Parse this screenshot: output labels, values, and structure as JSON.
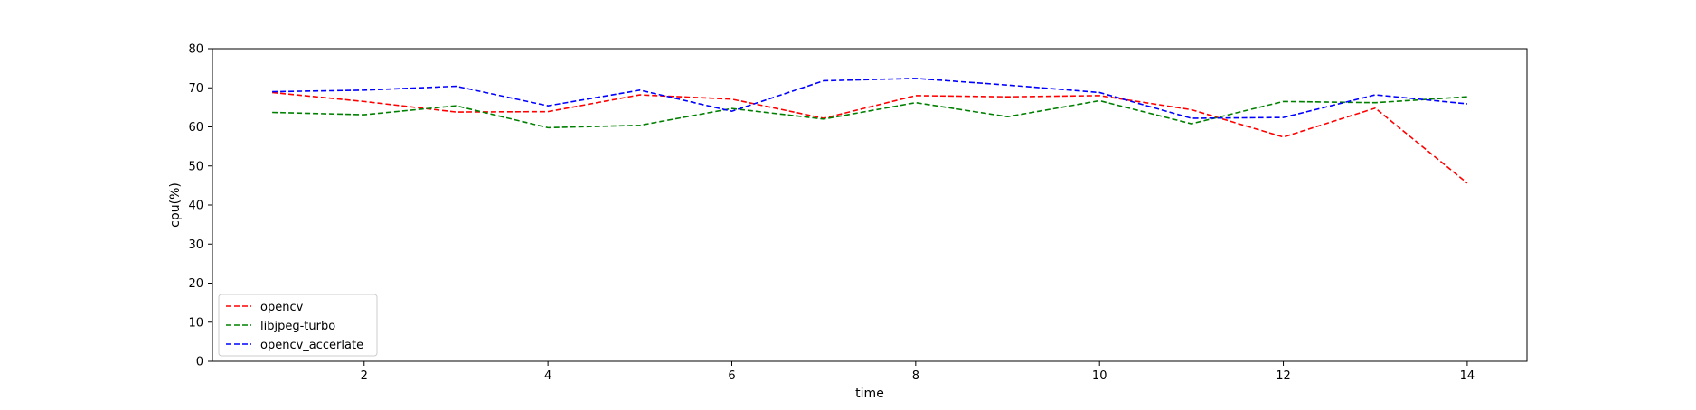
{
  "chart_data": {
    "type": "line",
    "title": "",
    "xlabel": "time",
    "ylabel": "cpu(%)",
    "xlim": [
      0.35,
      14.65
    ],
    "ylim": [
      0,
      80
    ],
    "xticks": [
      2,
      4,
      6,
      8,
      10,
      12,
      14
    ],
    "yticks": [
      0,
      10,
      20,
      30,
      40,
      50,
      60,
      70,
      80
    ],
    "grid": false,
    "legend_position": "lower-left",
    "x": [
      1,
      2,
      3,
      4,
      5,
      6,
      7,
      8,
      9,
      10,
      11,
      12,
      13,
      14
    ],
    "series": [
      {
        "name": "opencv",
        "color": "#ff0000",
        "line_style": "dashed",
        "values": [
          68.8,
          66.5,
          63.8,
          63.9,
          68.2,
          67.1,
          62.2,
          68.0,
          67.7,
          68.0,
          64.4,
          57.4,
          64.8,
          45.6
        ]
      },
      {
        "name": "libjpeg-turbo",
        "color": "#008000",
        "line_style": "dashed",
        "values": [
          63.7,
          63.1,
          65.4,
          59.8,
          60.4,
          64.7,
          62.0,
          66.2,
          62.6,
          66.7,
          60.8,
          66.5,
          66.2,
          67.7
        ]
      },
      {
        "name": "opencv_accerlate",
        "color": "#0000ff",
        "line_style": "dashed",
        "values": [
          69.0,
          69.4,
          70.4,
          65.4,
          69.4,
          64.0,
          71.8,
          72.4,
          70.7,
          68.8,
          62.2,
          62.4,
          68.2,
          65.9
        ]
      }
    ]
  }
}
